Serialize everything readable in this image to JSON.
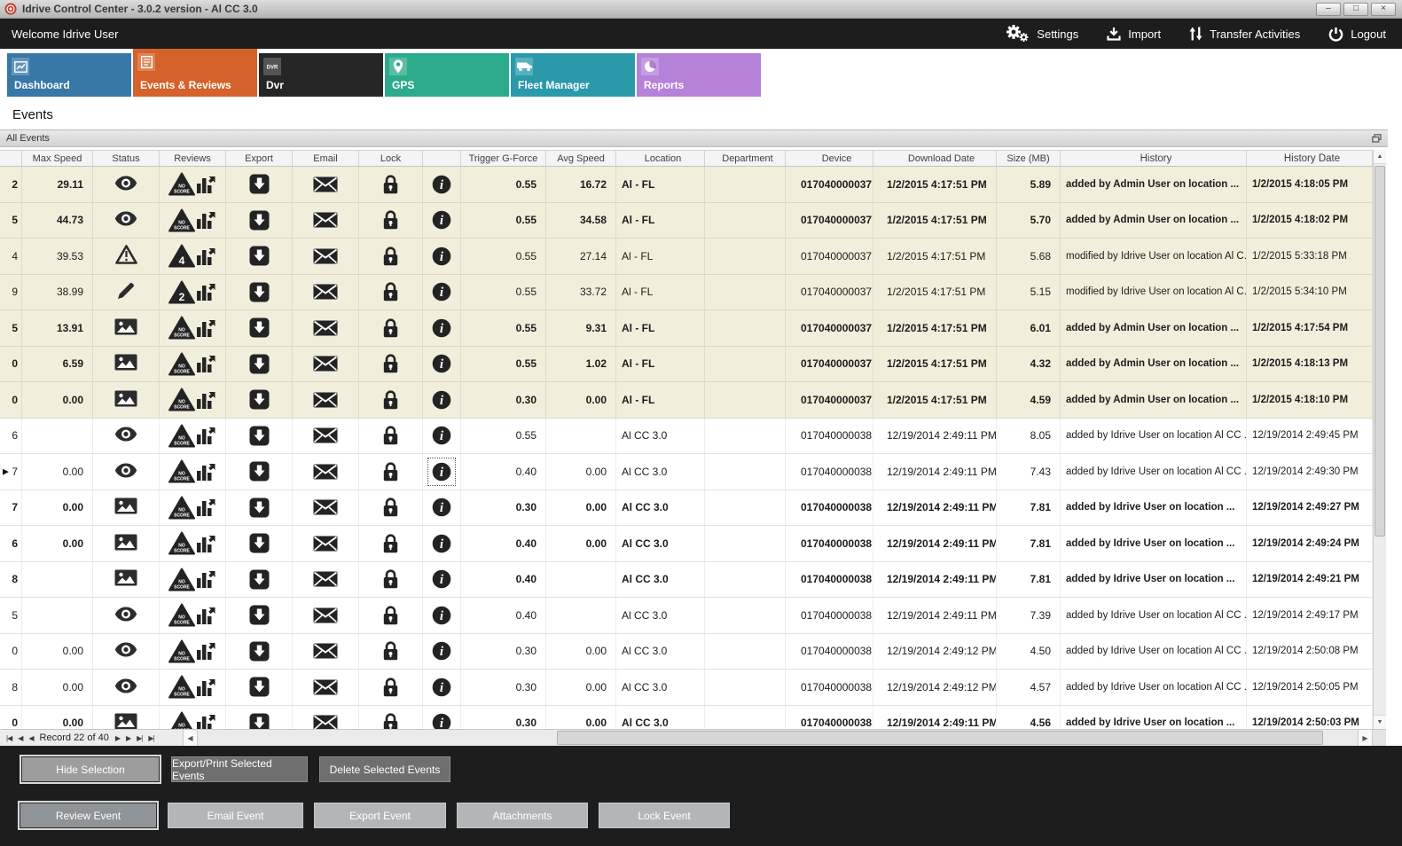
{
  "window": {
    "title": "Idrive Control Center - 3.0.2 version - Al CC 3.0",
    "minimize": "–",
    "maximize": "□",
    "close": "×"
  },
  "topbar": {
    "welcome": "Welcome Idrive User",
    "actions": [
      {
        "label": "Settings",
        "icon": "gears-icon"
      },
      {
        "label": "Import",
        "icon": "import-icon"
      },
      {
        "label": "Transfer Activities",
        "icon": "transfer-icon"
      },
      {
        "label": "Logout",
        "icon": "power-icon"
      }
    ]
  },
  "tabs": [
    {
      "label": "Dashboard",
      "color": "#3878a8",
      "icon": "chart-icon",
      "active": false
    },
    {
      "label": "Events & Reviews",
      "color": "#d4622a",
      "icon": "events-icon",
      "active": true
    },
    {
      "label": "Dvr",
      "color": "#262626",
      "icon": "dvr-icon",
      "active": false
    },
    {
      "label": "GPS",
      "color": "#2bab8b",
      "icon": "map-pin-icon",
      "active": false
    },
    {
      "label": "Fleet Manager",
      "color": "#2a9aab",
      "icon": "vehicle-icon",
      "active": false
    },
    {
      "label": "Reports",
      "color": "#b681d8",
      "icon": "pie-icon",
      "active": false
    }
  ],
  "page_title": "Events",
  "panel_title": "All Events",
  "table": {
    "columns": [
      "",
      "Max Speed",
      "Status",
      "Reviews",
      "Export",
      "Email",
      "Lock",
      "",
      "Trigger G-Force",
      "Avg Speed",
      "Location",
      "Department",
      "Device",
      "Download Date",
      "Size (MB)",
      "History",
      "History Date"
    ],
    "rows": [
      {
        "edge": "2",
        "marker": false,
        "max_speed": "29.11",
        "status": "eye-icon",
        "review": "NO SCORE",
        "trigger_g_force": "0.55",
        "avg_speed": "16.72",
        "location": "Al - FL",
        "department": "",
        "device": "017040000037",
        "download_date": "1/2/2015 4:17:51 PM",
        "size_mb": "5.89",
        "history": "added by Admin User on location ...",
        "history_date": "1/2/2015 4:18:05 PM",
        "bold": true,
        "beige": true,
        "info_selected": false
      },
      {
        "edge": "5",
        "marker": false,
        "max_speed": "44.73",
        "status": "eye-icon",
        "review": "NO SCORE",
        "trigger_g_force": "0.55",
        "avg_speed": "34.58",
        "location": "Al - FL",
        "department": "",
        "device": "017040000037",
        "download_date": "1/2/2015 4:17:51 PM",
        "size_mb": "5.70",
        "history": "added by Admin User on location ...",
        "history_date": "1/2/2015 4:18:02 PM",
        "bold": true,
        "beige": true,
        "info_selected": false
      },
      {
        "edge": "4",
        "marker": false,
        "max_speed": "39.53",
        "status": "warning-icon",
        "review": "4",
        "trigger_g_force": "0.55",
        "avg_speed": "27.14",
        "location": "Al - FL",
        "department": "",
        "device": "017040000037",
        "download_date": "1/2/2015 4:17:51 PM",
        "size_mb": "5.68",
        "history": "modified by Idrive User on location Al C...",
        "history_date": "1/2/2015 5:33:18 PM",
        "bold": false,
        "beige": true,
        "info_selected": false
      },
      {
        "edge": "9",
        "marker": false,
        "max_speed": "38.99",
        "status": "pencil-icon",
        "review": "2",
        "trigger_g_force": "0.55",
        "avg_speed": "33.72",
        "location": "Al - FL",
        "department": "",
        "device": "017040000037",
        "download_date": "1/2/2015 4:17:51 PM",
        "size_mb": "5.15",
        "history": "modified by Idrive User on location Al C...",
        "history_date": "1/2/2015 5:34:10 PM",
        "bold": false,
        "beige": true,
        "info_selected": false
      },
      {
        "edge": "5",
        "marker": false,
        "max_speed": "13.91",
        "status": "image-icon",
        "review": "NO SCORE",
        "trigger_g_force": "0.55",
        "avg_speed": "9.31",
        "location": "Al - FL",
        "department": "",
        "device": "017040000037",
        "download_date": "1/2/2015 4:17:51 PM",
        "size_mb": "6.01",
        "history": "added by Admin User on location ...",
        "history_date": "1/2/2015 4:17:54 PM",
        "bold": true,
        "beige": true,
        "info_selected": false
      },
      {
        "edge": "0",
        "marker": false,
        "max_speed": "6.59",
        "status": "image-icon",
        "review": "NO SCORE",
        "trigger_g_force": "0.55",
        "avg_speed": "1.02",
        "location": "Al - FL",
        "department": "",
        "device": "017040000037",
        "download_date": "1/2/2015 4:17:51 PM",
        "size_mb": "4.32",
        "history": "added by Admin User on location ...",
        "history_date": "1/2/2015 4:18:13 PM",
        "bold": true,
        "beige": true,
        "info_selected": false
      },
      {
        "edge": "0",
        "marker": false,
        "max_speed": "0.00",
        "status": "image-icon",
        "review": "NO SCORE",
        "trigger_g_force": "0.30",
        "avg_speed": "0.00",
        "location": "Al - FL",
        "department": "",
        "device": "017040000037",
        "download_date": "1/2/2015 4:17:51 PM",
        "size_mb": "4.59",
        "history": "added by Admin User on location ...",
        "history_date": "1/2/2015 4:18:10 PM",
        "bold": true,
        "beige": true,
        "info_selected": false
      },
      {
        "edge": "6",
        "marker": false,
        "max_speed": "",
        "status": "eye-icon",
        "review": "NO SCORE",
        "trigger_g_force": "0.55",
        "avg_speed": "",
        "location": "Al CC 3.0",
        "department": "",
        "device": "017040000038",
        "download_date": "12/19/2014 2:49:11 PM",
        "size_mb": "8.05",
        "history": "added by Idrive User on location Al CC ...",
        "history_date": "12/19/2014 2:49:45 PM",
        "bold": false,
        "beige": false,
        "info_selected": false
      },
      {
        "edge": "7",
        "marker": true,
        "max_speed": "0.00",
        "status": "eye-icon",
        "review": "NO SCORE",
        "trigger_g_force": "0.40",
        "avg_speed": "0.00",
        "location": "Al CC 3.0",
        "department": "",
        "device": "017040000038",
        "download_date": "12/19/2014 2:49:11 PM",
        "size_mb": "7.43",
        "history": "added by Idrive User on location Al CC ...",
        "history_date": "12/19/2014 2:49:30 PM",
        "bold": false,
        "beige": false,
        "info_selected": true
      },
      {
        "edge": "7",
        "marker": false,
        "max_speed": "0.00",
        "status": "image-icon",
        "review": "NO SCORE",
        "trigger_g_force": "0.30",
        "avg_speed": "0.00",
        "location": "Al CC 3.0",
        "department": "",
        "device": "017040000038",
        "download_date": "12/19/2014 2:49:11 PM",
        "size_mb": "7.81",
        "history": "added by Idrive User on location ...",
        "history_date": "12/19/2014 2:49:27 PM",
        "bold": true,
        "beige": false,
        "info_selected": false
      },
      {
        "edge": "6",
        "marker": false,
        "max_speed": "0.00",
        "status": "image-icon",
        "review": "NO SCORE",
        "trigger_g_force": "0.40",
        "avg_speed": "0.00",
        "location": "Al CC 3.0",
        "department": "",
        "device": "017040000038",
        "download_date": "12/19/2014 2:49:11 PM",
        "size_mb": "7.81",
        "history": "added by Idrive User on location ...",
        "history_date": "12/19/2014 2:49:24 PM",
        "bold": true,
        "beige": false,
        "info_selected": false
      },
      {
        "edge": "8",
        "marker": false,
        "max_speed": "",
        "status": "image-icon",
        "review": "NO SCORE",
        "trigger_g_force": "0.40",
        "avg_speed": "",
        "location": "Al CC 3.0",
        "department": "",
        "device": "017040000038",
        "download_date": "12/19/2014 2:49:11 PM",
        "size_mb": "7.81",
        "history": "added by Idrive User on location ...",
        "history_date": "12/19/2014 2:49:21 PM",
        "bold": true,
        "beige": false,
        "info_selected": false
      },
      {
        "edge": "5",
        "marker": false,
        "max_speed": "",
        "status": "eye-icon",
        "review": "NO SCORE",
        "trigger_g_force": "0.40",
        "avg_speed": "",
        "location": "Al CC 3.0",
        "department": "",
        "device": "017040000038",
        "download_date": "12/19/2014 2:49:11 PM",
        "size_mb": "7.39",
        "history": "added by Idrive User on location Al CC ...",
        "history_date": "12/19/2014 2:49:17 PM",
        "bold": false,
        "beige": false,
        "info_selected": false
      },
      {
        "edge": "0",
        "marker": false,
        "max_speed": "0.00",
        "status": "eye-icon",
        "review": "NO SCORE",
        "trigger_g_force": "0.30",
        "avg_speed": "0.00",
        "location": "Al CC 3.0",
        "department": "",
        "device": "017040000038",
        "download_date": "12/19/2014 2:49:12 PM",
        "size_mb": "4.50",
        "history": "added by Idrive User on location Al CC ...",
        "history_date": "12/19/2014 2:50:08 PM",
        "bold": false,
        "beige": false,
        "info_selected": false
      },
      {
        "edge": "8",
        "marker": false,
        "max_speed": "0.00",
        "status": "eye-icon",
        "review": "NO SCORE",
        "trigger_g_force": "0.30",
        "avg_speed": "0.00",
        "location": "Al CC 3.0",
        "department": "",
        "device": "017040000038",
        "download_date": "12/19/2014 2:49:12 PM",
        "size_mb": "4.57",
        "history": "added by Idrive User on location Al CC ...",
        "history_date": "12/19/2014 2:50:05 PM",
        "bold": false,
        "beige": false,
        "info_selected": false
      },
      {
        "edge": "0",
        "marker": false,
        "max_speed": "0.00",
        "status": "image-icon",
        "review": "NO SCORE",
        "trigger_g_force": "0.30",
        "avg_speed": "0.00",
        "location": "Al CC 3.0",
        "department": "",
        "device": "017040000038",
        "download_date": "12/19/2014 2:49:11 PM",
        "size_mb": "4.56",
        "history": "added by Idrive User on location ...",
        "history_date": "12/19/2014 2:50:03 PM",
        "bold": true,
        "beige": false,
        "info_selected": false
      }
    ]
  },
  "pagination": {
    "label": "Record 22 of 40",
    "first": "|◀",
    "prev": "◀",
    "next": "▶",
    "last": "▶|"
  },
  "buttons": {
    "selection": [
      "Hide Selection",
      "Export/Print Selected Events",
      "Delete Selected  Events"
    ],
    "event": [
      "Review Event",
      "Email Event",
      "Export Event",
      "Attachments",
      "Lock Event"
    ]
  },
  "colors": {
    "accent_orange": "#d4622a",
    "row_beige": "#f1eedb",
    "topbar_bg": "#1d1d1d"
  }
}
